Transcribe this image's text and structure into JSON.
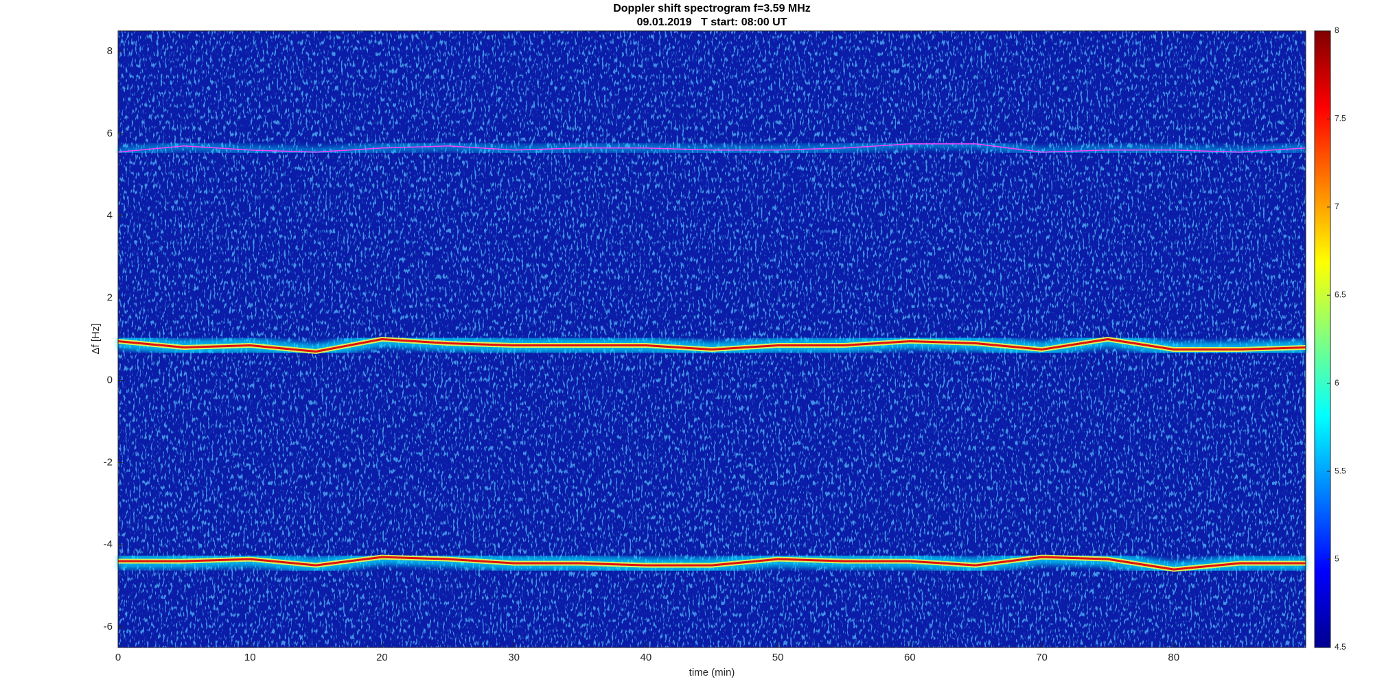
{
  "chart_data": {
    "type": "spectrogram",
    "title": "Doppler shift spectrogram f=3.59 MHz",
    "subtitle": "09.01.2019   T start: 08:00 UT",
    "x_label": "time (min)",
    "y_label": "Δf [Hz]",
    "xlim": [
      0,
      90
    ],
    "ylim": [
      -6.5,
      8.5
    ],
    "xticks": [
      0,
      10,
      20,
      30,
      40,
      50,
      60,
      70,
      80
    ],
    "yticks": [
      -6,
      -4,
      -2,
      0,
      2,
      4,
      6,
      8
    ],
    "x": [
      0,
      5,
      10,
      15,
      20,
      25,
      30,
      35,
      40,
      45,
      50,
      55,
      60,
      65,
      70,
      75,
      80,
      85,
      90
    ],
    "series": [
      {
        "color": "#ff40ff",
        "values": [
          5.55,
          5.7,
          5.6,
          5.55,
          5.65,
          5.7,
          5.6,
          5.65,
          5.65,
          5.6,
          5.6,
          5.65,
          5.75,
          5.75,
          5.55,
          5.6,
          5.6,
          5.55,
          5.65
        ]
      },
      {
        "color": "#e01010",
        "values": [
          0.95,
          0.8,
          0.85,
          0.7,
          1.0,
          0.9,
          0.85,
          0.85,
          0.85,
          0.75,
          0.85,
          0.85,
          0.95,
          0.9,
          0.75,
          1.0,
          0.75,
          0.75,
          0.8
        ]
      },
      {
        "color": "#e01010",
        "values": [
          -4.4,
          -4.4,
          -4.35,
          -4.5,
          -4.3,
          -4.35,
          -4.45,
          -4.45,
          -4.5,
          -4.5,
          -4.35,
          -4.4,
          -4.4,
          -4.5,
          -4.3,
          -4.35,
          -4.6,
          -4.45,
          -4.45
        ]
      }
    ],
    "background_color": "#0a1ca8",
    "clim": [
      4.5,
      8
    ],
    "cticks": [
      4.5,
      5,
      5.5,
      6,
      6.5,
      7,
      7.5,
      8
    ],
    "colormap": [
      "#00008f",
      "#0000ff",
      "#0080ff",
      "#00ffff",
      "#80ff80",
      "#ffff00",
      "#ff8000",
      "#ff0000",
      "#800000"
    ]
  }
}
